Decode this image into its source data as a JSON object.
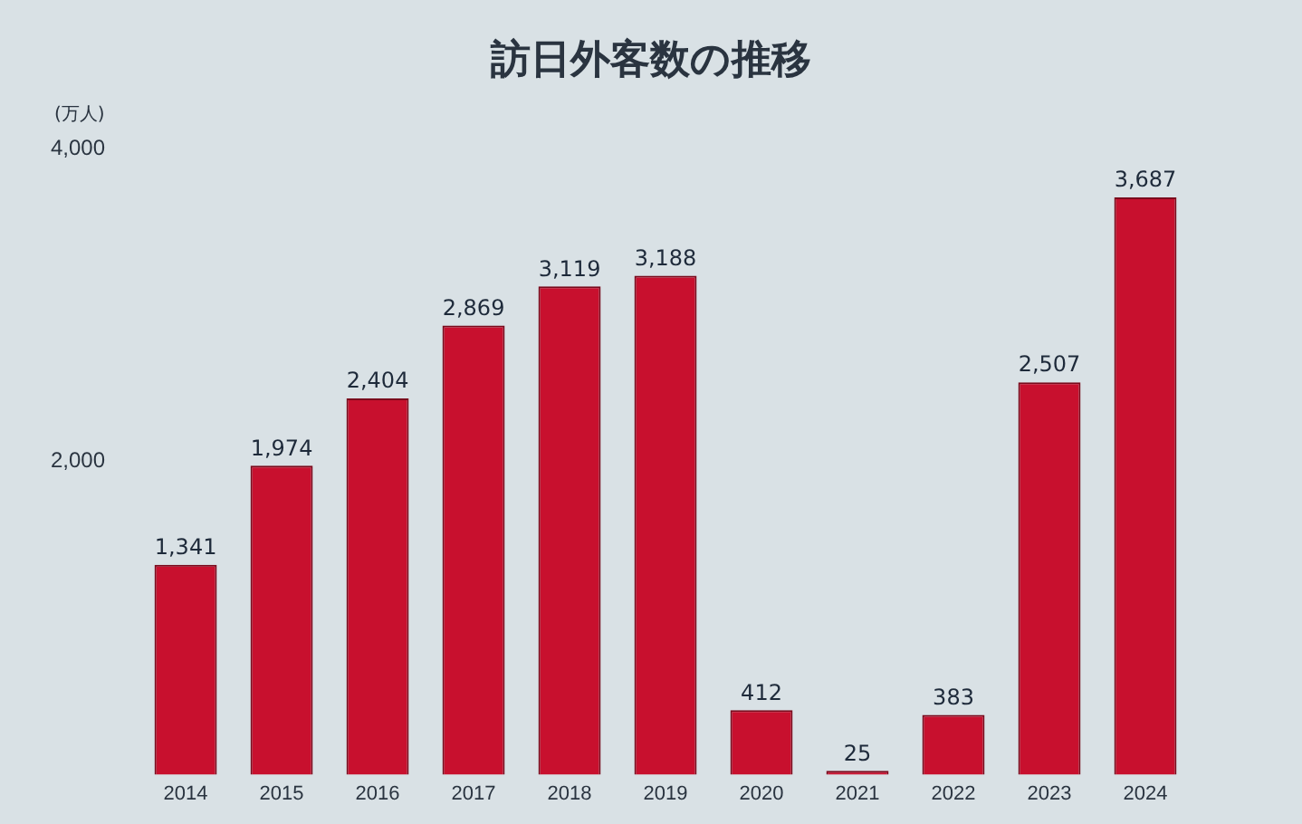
{
  "chart_data": {
    "type": "bar",
    "title": "訪日外客数の推移",
    "ylabel": "(万人)",
    "categories": [
      "2014",
      "2015",
      "2016",
      "2017",
      "2018",
      "2019",
      "2020",
      "2021",
      "2022",
      "2023",
      "2024"
    ],
    "values": [
      1341,
      1974,
      2404,
      2869,
      3119,
      3188,
      412,
      25,
      383,
      2507,
      3687
    ],
    "value_labels": [
      "1,341",
      "1,974",
      "2,404",
      "2,869",
      "3,119",
      "3,188",
      "412",
      "25",
      "383",
      "2,507",
      "3,687"
    ],
    "color": "#c8102e",
    "ylim": [
      0,
      4000
    ],
    "yticks": [
      {
        "value": 2000,
        "label": "2,000"
      },
      {
        "value": 4000,
        "label": "4,000"
      }
    ],
    "grid": false,
    "legend": false
  }
}
